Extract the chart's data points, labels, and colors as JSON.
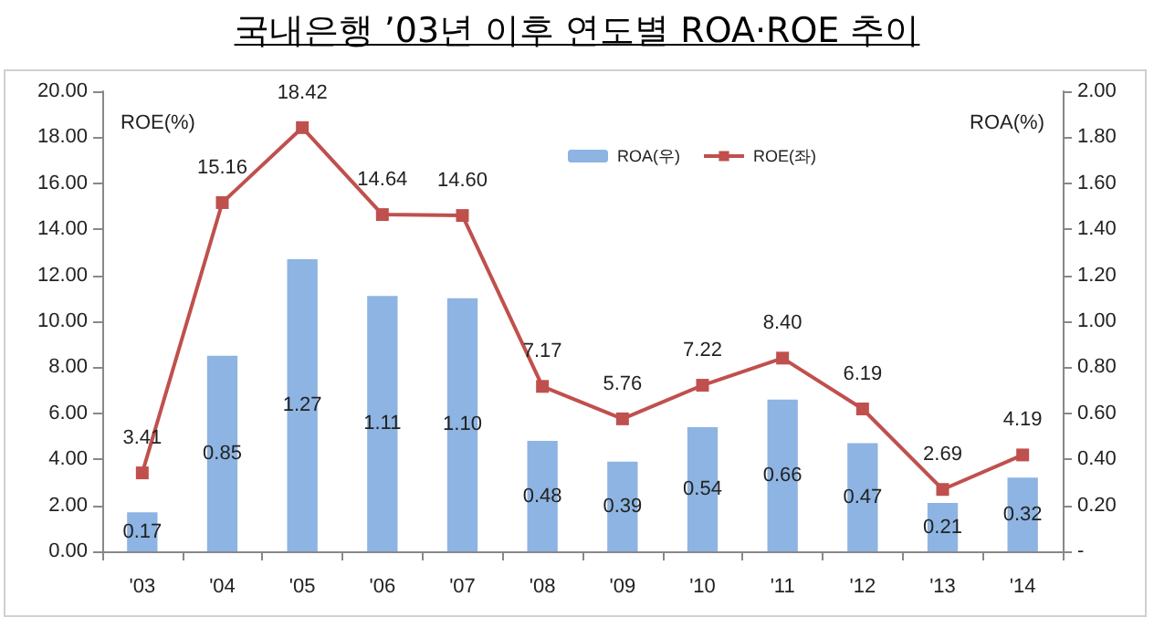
{
  "chart_data": {
    "type": "bar",
    "title": "국내은행 ’03년 이후 연도별 ROA·ROE 추이",
    "ylabel": "ROE(%)",
    "y2label": "ROA(%)",
    "categories": [
      "'03",
      "'04",
      "'05",
      "'06",
      "'07",
      "'08",
      "'09",
      "'10",
      "'11",
      "'12",
      "'13",
      "'14"
    ],
    "series": [
      {
        "name": "ROA(우)",
        "axis": "y2",
        "color": "#8db4e2",
        "values": [
          0.17,
          0.85,
          1.27,
          1.11,
          1.1,
          0.48,
          0.39,
          0.54,
          0.66,
          0.47,
          0.21,
          0.32
        ],
        "value_labels": [
          "0.17",
          "0.85",
          "1.27",
          "1.11",
          "1.10",
          "0.48",
          "0.39",
          "0.54",
          "0.66",
          "0.47",
          "0.21",
          "0.32"
        ]
      },
      {
        "name": "ROE(좌)",
        "type": "line",
        "color": "#c0504d",
        "values": [
          3.41,
          15.16,
          18.42,
          14.64,
          14.6,
          7.17,
          5.76,
          7.22,
          8.4,
          6.19,
          2.69,
          4.19
        ],
        "value_labels": [
          "3.41",
          "15.16",
          "18.42",
          "14.64",
          "14.60",
          "7.17",
          "5.76",
          "7.22",
          "8.40",
          "6.19",
          "2.69",
          "4.19"
        ]
      }
    ],
    "ylim": [
      0,
      20
    ],
    "yticks": [
      {
        "value": 0,
        "label": "0.00"
      },
      {
        "value": 2,
        "label": "2.00"
      },
      {
        "value": 4,
        "label": "4.00"
      },
      {
        "value": 6,
        "label": "6.00"
      },
      {
        "value": 8,
        "label": "8.00"
      },
      {
        "value": 10,
        "label": "10.00"
      },
      {
        "value": 12,
        "label": "12.00"
      },
      {
        "value": 14,
        "label": "14.00"
      },
      {
        "value": 16,
        "label": "16.00"
      },
      {
        "value": 18,
        "label": "18.00"
      },
      {
        "value": 20,
        "label": "20.00"
      }
    ],
    "y2lim": [
      0,
      2
    ],
    "y2ticks": [
      {
        "value": 0,
        "label": "-"
      },
      {
        "value": 0.2,
        "label": "0.20"
      },
      {
        "value": 0.4,
        "label": "0.40"
      },
      {
        "value": 0.6,
        "label": "0.60"
      },
      {
        "value": 0.8,
        "label": "0.80"
      },
      {
        "value": 1,
        "label": "1.00"
      },
      {
        "value": 1.2,
        "label": "1.20"
      },
      {
        "value": 1.4,
        "label": "1.40"
      },
      {
        "value": 1.6,
        "label": "1.60"
      },
      {
        "value": 1.8,
        "label": "1.80"
      },
      {
        "value": 2,
        "label": "2.00"
      }
    ],
    "grid": false,
    "legend": "top right",
    "marker": "square",
    "line_style": "solid"
  }
}
